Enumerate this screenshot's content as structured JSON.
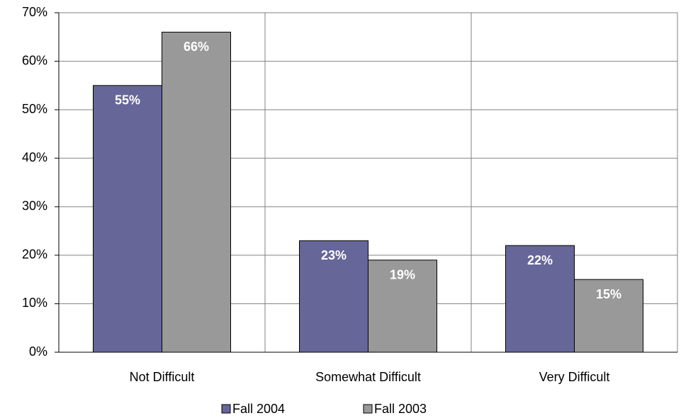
{
  "chart_data": {
    "type": "bar",
    "categories": [
      "Not Difficult",
      "Somewhat Difficult",
      "Very Difficult"
    ],
    "series": [
      {
        "name": "Fall 2004",
        "color": "#666699",
        "values": [
          55,
          23,
          22
        ],
        "value_labels": [
          "55%",
          "23%",
          "22%"
        ]
      },
      {
        "name": "Fall 2003",
        "color": "#999999",
        "values": [
          66,
          19,
          15
        ],
        "value_labels": [
          "66%",
          "19%",
          "15%"
        ]
      }
    ],
    "ylim": [
      0,
      70
    ],
    "yticks": [
      {
        "value": 0,
        "label": "0%"
      },
      {
        "value": 10,
        "label": "10%"
      },
      {
        "value": 20,
        "label": "20%"
      },
      {
        "value": 30,
        "label": "30%"
      },
      {
        "value": 40,
        "label": "40%"
      },
      {
        "value": 50,
        "label": "50%"
      },
      {
        "value": 60,
        "label": "60%"
      },
      {
        "value": 70,
        "label": "70%"
      }
    ],
    "grid": true,
    "legend": "bottom"
  }
}
